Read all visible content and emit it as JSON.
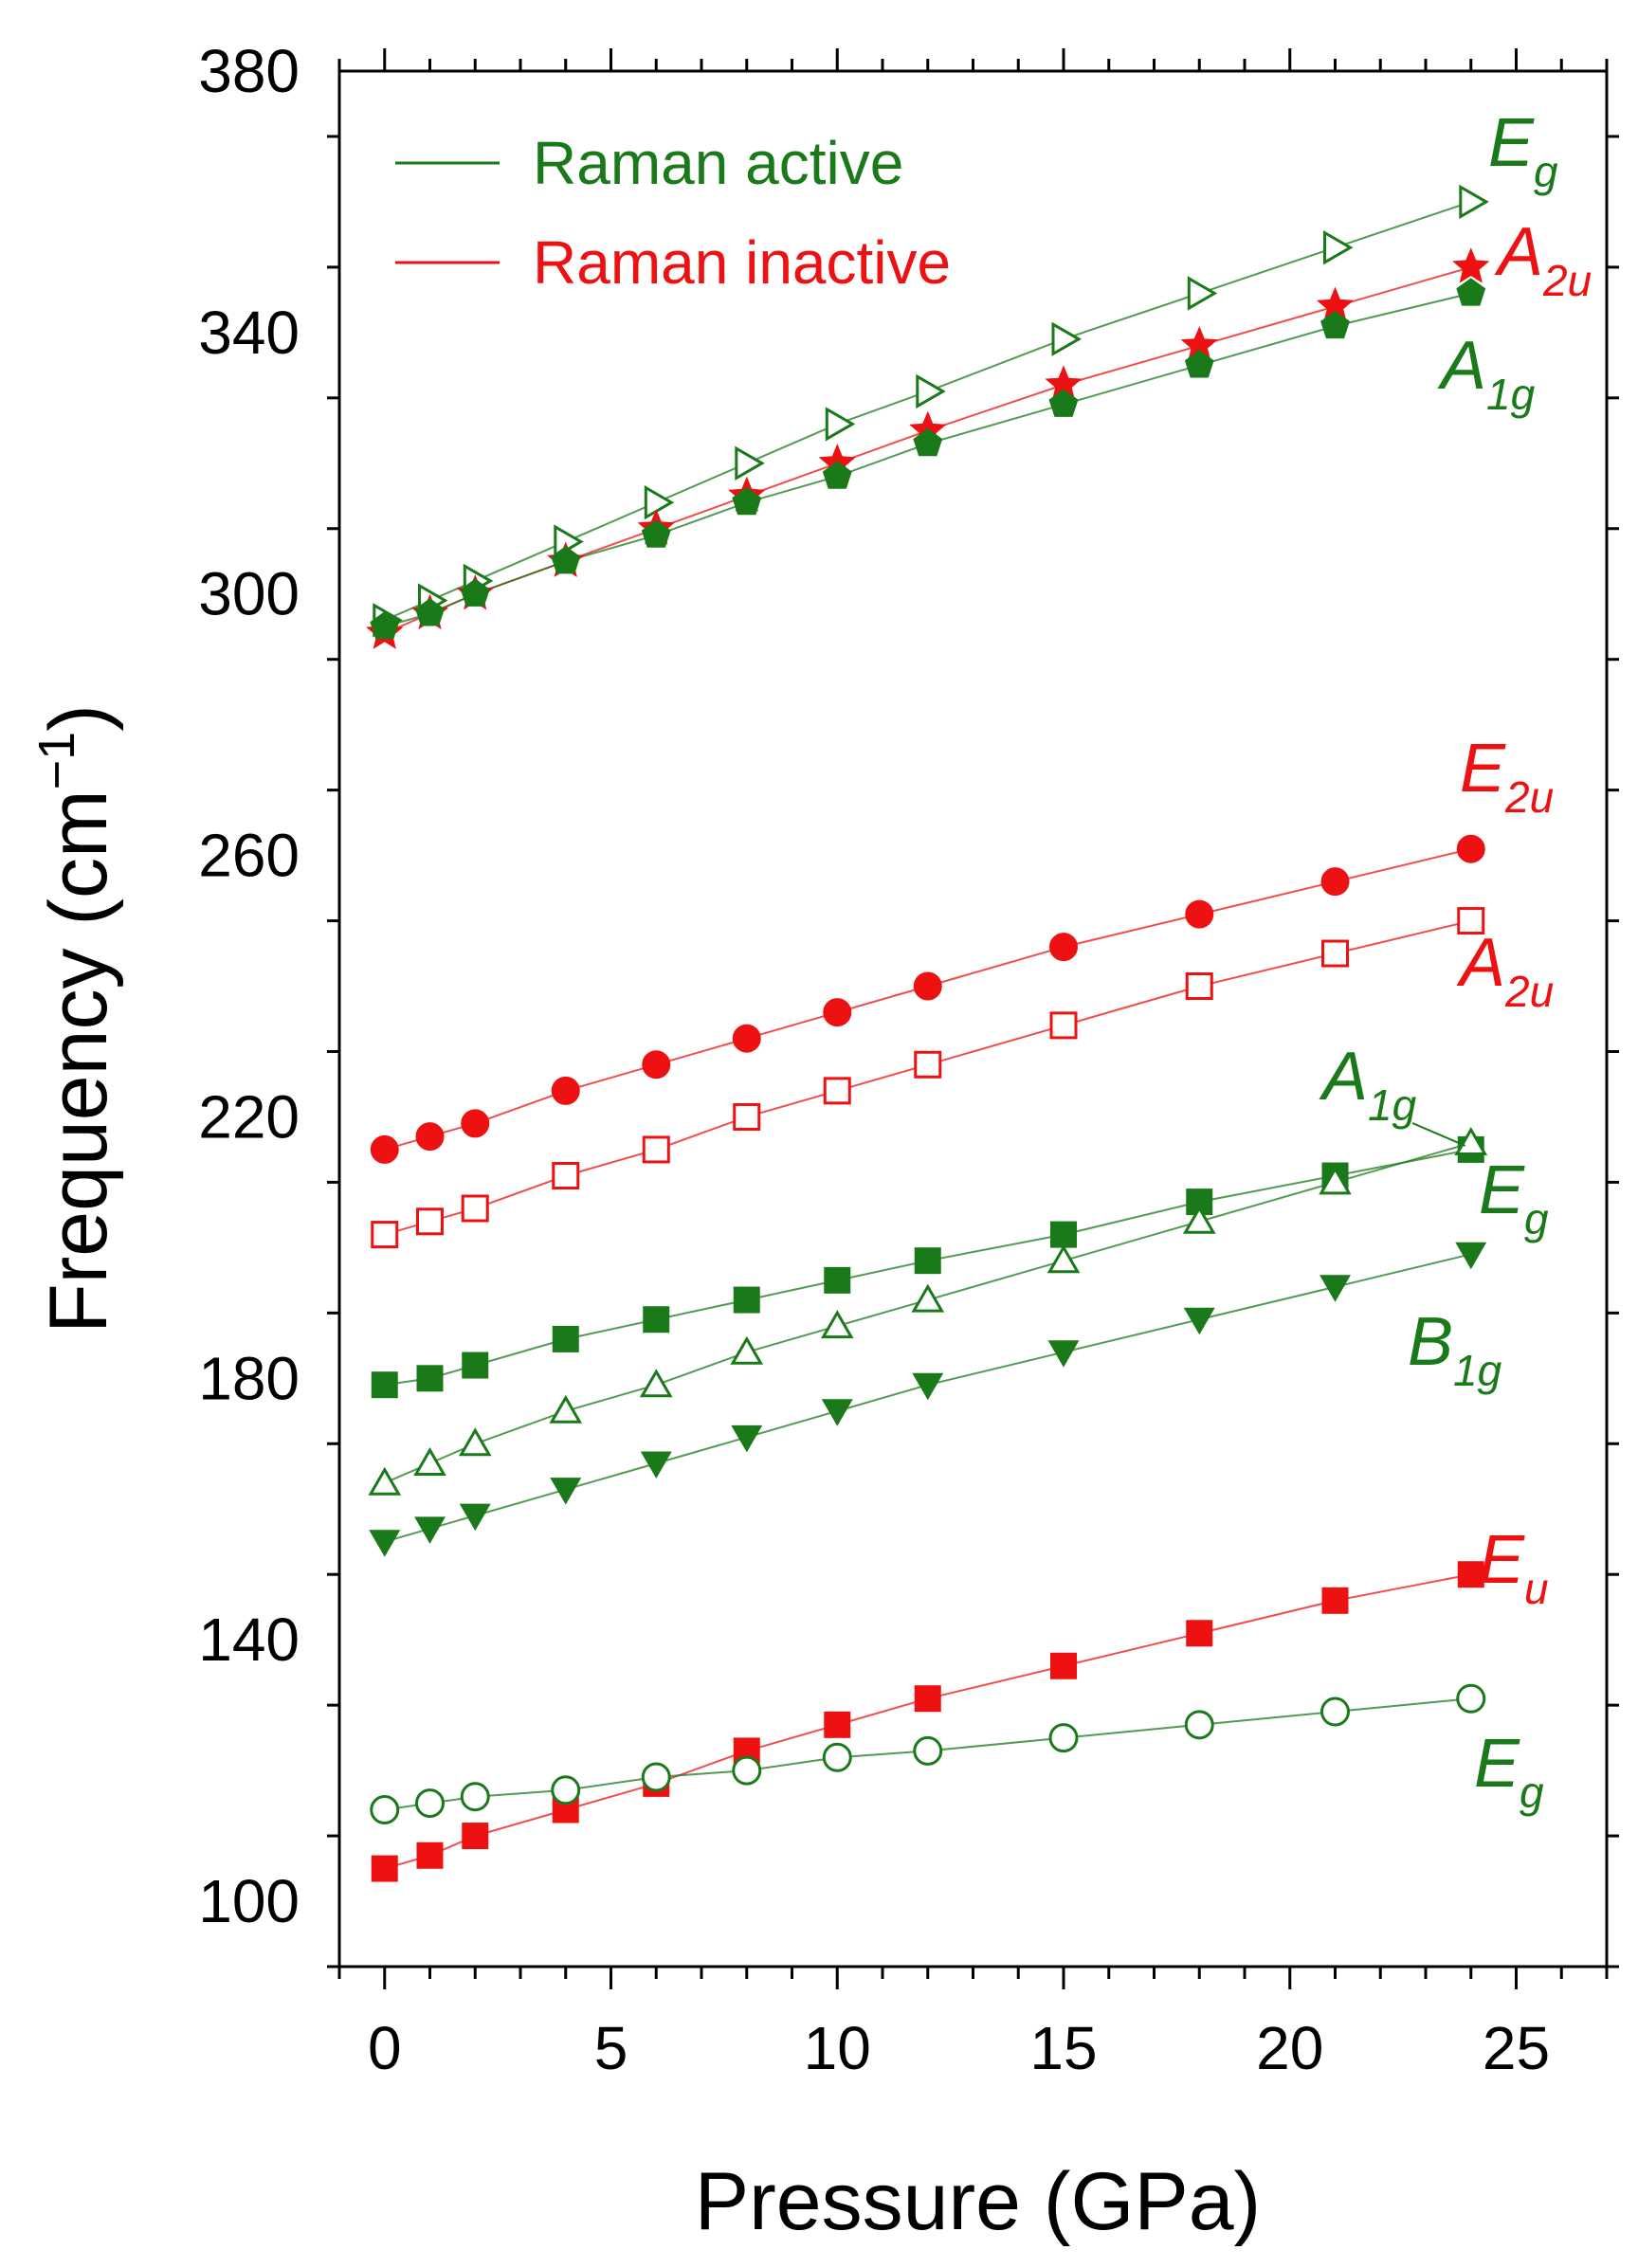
{
  "chart_data": {
    "type": "scatter",
    "xlabel": "Pressure (GPa)",
    "ylabel": "Frequency (cm",
    "ylabel_sup": "−1",
    "ylabel_close": ")",
    "xlim": [
      -1,
      27
    ],
    "ylim": [
      90,
      380
    ],
    "xticks": [
      0,
      5,
      10,
      15,
      20,
      25
    ],
    "yticks": [
      100,
      140,
      180,
      220,
      260,
      300,
      340,
      380
    ],
    "colors": {
      "active": "#1a7a1a",
      "inactive": "#ee1111"
    },
    "legend": {
      "position": "top-left",
      "entries": [
        {
          "label": "Raman active",
          "group": "active"
        },
        {
          "label": "Raman inactive",
          "group": "inactive"
        }
      ]
    },
    "series": [
      {
        "id": "eg-high",
        "group": "active",
        "marker": "triangle-right-open",
        "x": [
          0,
          1,
          2,
          4,
          6,
          8,
          10,
          12,
          15,
          18,
          21,
          24
        ],
        "y": [
          296,
          299,
          302,
          308,
          314,
          320,
          326,
          331,
          339,
          346,
          353,
          360
        ],
        "label": {
          "main": "E",
          "sub": "g"
        }
      },
      {
        "id": "a2u-high",
        "group": "inactive",
        "marker": "star-filled",
        "x": [
          0,
          1,
          2,
          4,
          6,
          8,
          10,
          12,
          15,
          18,
          21,
          24
        ],
        "y": [
          294,
          297,
          300,
          305,
          310,
          315,
          320,
          325,
          332,
          338,
          344,
          350
        ],
        "label": {
          "main": "A",
          "sub": "2u"
        }
      },
      {
        "id": "a1g-high",
        "group": "active",
        "marker": "pentagon-filled",
        "x": [
          0,
          1,
          2,
          4,
          6,
          8,
          10,
          12,
          15,
          18,
          21,
          24
        ],
        "y": [
          295,
          297,
          300,
          305,
          309,
          314,
          318,
          323,
          329,
          335,
          341,
          346
        ],
        "label": {
          "main": "A",
          "sub": "1g"
        }
      },
      {
        "id": "e2u",
        "group": "inactive",
        "marker": "circle-filled",
        "x": [
          0,
          1,
          2,
          4,
          6,
          8,
          10,
          12,
          15,
          18,
          21,
          24
        ],
        "y": [
          215,
          217,
          219,
          224,
          228,
          232,
          236,
          240,
          246,
          251,
          256,
          261
        ],
        "label": {
          "main": "E",
          "sub": "2u"
        }
      },
      {
        "id": "a2u-low",
        "group": "inactive",
        "marker": "square-open",
        "x": [
          0,
          1,
          2,
          4,
          6,
          8,
          10,
          12,
          15,
          18,
          21,
          24
        ],
        "y": [
          202,
          204,
          206,
          211,
          215,
          220,
          224,
          228,
          234,
          240,
          245,
          250
        ],
        "label": {
          "main": "A",
          "sub": "2u"
        }
      },
      {
        "id": "a1g-low",
        "group": "active",
        "marker": "square-filled",
        "x": [
          0,
          1,
          2,
          4,
          6,
          8,
          10,
          12,
          15,
          18,
          21,
          24
        ],
        "y": [
          179,
          180,
          182,
          186,
          189,
          192,
          195,
          198,
          202,
          207,
          211,
          215
        ],
        "label": {
          "main": "A",
          "sub": "1g"
        }
      },
      {
        "id": "eg-mid",
        "group": "active",
        "marker": "triangle-up-open",
        "x": [
          0,
          1,
          2,
          4,
          6,
          8,
          10,
          12,
          15,
          18,
          21,
          24
        ],
        "y": [
          164,
          167,
          170,
          175,
          179,
          184,
          188,
          192,
          198,
          204,
          210,
          216
        ],
        "label": {
          "main": "E",
          "sub": "g"
        }
      },
      {
        "id": "b1g",
        "group": "active",
        "marker": "triangle-down-filled",
        "x": [
          0,
          1,
          2,
          4,
          6,
          8,
          10,
          12,
          15,
          18,
          21,
          24
        ],
        "y": [
          155,
          157,
          159,
          163,
          167,
          171,
          175,
          179,
          184,
          189,
          194,
          199
        ],
        "label": {
          "main": "B",
          "sub": "1g"
        }
      },
      {
        "id": "eu",
        "group": "inactive",
        "marker": "square-filled",
        "x": [
          0,
          1,
          2,
          4,
          6,
          8,
          10,
          12,
          15,
          18,
          21,
          24
        ],
        "y": [
          105,
          107,
          110,
          114,
          118,
          123,
          127,
          131,
          136,
          141,
          146,
          150
        ],
        "label": {
          "main": "E",
          "sub": "u"
        }
      },
      {
        "id": "eg-low",
        "group": "active",
        "marker": "circle-open",
        "x": [
          0,
          1,
          2,
          4,
          6,
          8,
          10,
          12,
          15,
          18,
          21,
          24
        ],
        "y": [
          114,
          115,
          116,
          117,
          119,
          120,
          122,
          123,
          125,
          127,
          129,
          131
        ],
        "label": {
          "main": "E",
          "sub": "g"
        }
      }
    ]
  }
}
